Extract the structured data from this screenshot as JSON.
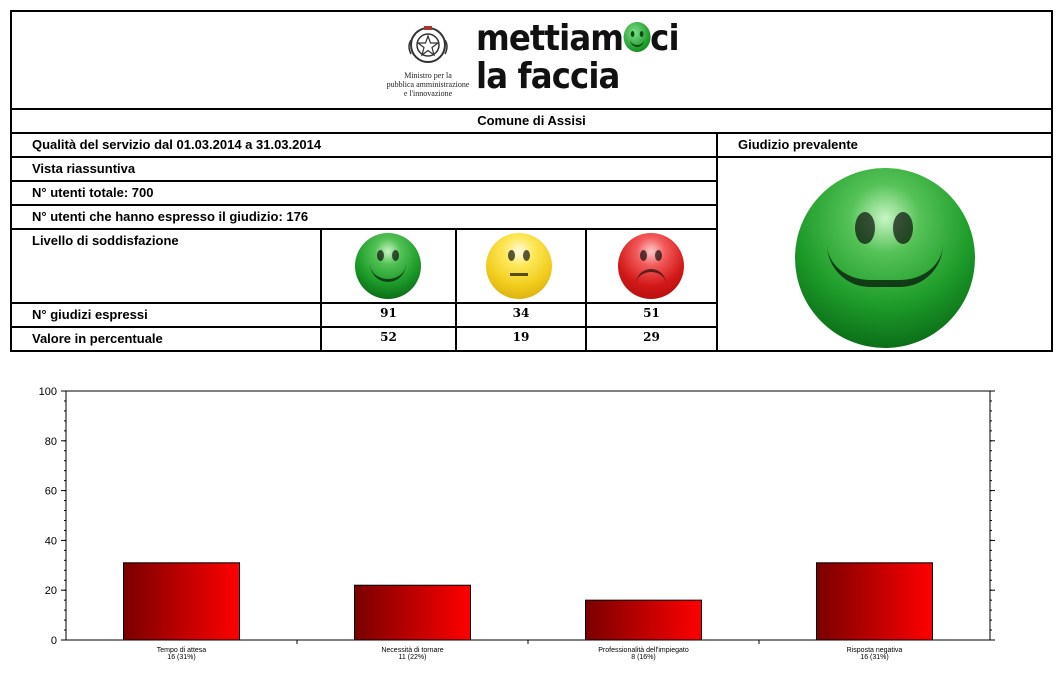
{
  "header": {
    "ministry_caption": [
      "Ministro per la",
      "pubblica amministrazione",
      "e l'innovazione"
    ],
    "brand_line1_a": "mettiam",
    "brand_line1_b": "ci",
    "brand_line2": "la faccia"
  },
  "comune": "Comune di Assisi",
  "summary": {
    "quality_label": "Qualità del servizio dal 01.03.2014 a 31.03.2014",
    "view_label": "Vista riassuntiva",
    "total_users": "N° utenti totale: 700",
    "judging_users": "N° utenti che hanno espresso il giudizio: 176",
    "satisfaction_label": "Livello di soddisfazione",
    "judgements_label": "N° giudizi espressi",
    "percent_label": "Valore in percentuale",
    "judgements": [
      "91",
      "34",
      "51"
    ],
    "percentages": [
      "52",
      "19",
      "29"
    ],
    "prevalent_label": "Giudizio prevalente",
    "icons": [
      "happy-face-green",
      "neutral-face-yellow",
      "sad-face-red"
    ]
  },
  "chart_data": {
    "type": "bar",
    "categories": [
      "Tempo di attesa",
      "Necessità di tornare",
      "Professionalità dell'impiegato",
      "Risposta negativa"
    ],
    "sublabels": [
      "16 (31%)",
      "11 (22%)",
      "8 (16%)",
      "16 (31%)"
    ],
    "values": [
      31,
      22,
      16,
      31
    ],
    "ylim": [
      0,
      100
    ],
    "yticks": [
      0,
      20,
      40,
      60,
      80,
      100
    ],
    "bar_color_from": "#7a0000",
    "bar_color_to": "#ff0000"
  }
}
